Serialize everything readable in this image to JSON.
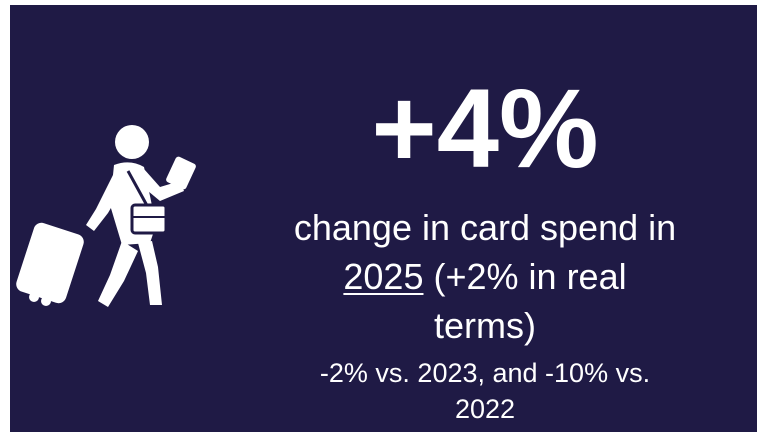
{
  "headline": "+4%",
  "description": {
    "line1": "change in card spend in",
    "year": "2025",
    "line2_rest": "(+2% in real",
    "line3": "terms)"
  },
  "note": {
    "line1": "-2% vs. 2023, and -10% vs.",
    "line2": "2022"
  }
}
